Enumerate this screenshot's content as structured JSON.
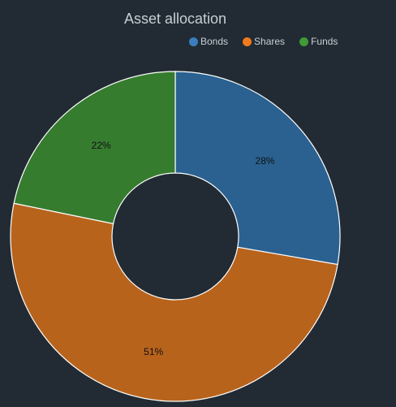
{
  "chart_data": {
    "type": "pie",
    "title": "Asset allocation",
    "categories": [
      "Bonds",
      "Shares",
      "Funds"
    ],
    "values": [
      28,
      51,
      22
    ],
    "value_labels": [
      "28%",
      "51%",
      "22%"
    ],
    "colors": [
      "#2a6190",
      "#b8631c",
      "#367c2f"
    ],
    "legend_colors": [
      "#3a7dbd",
      "#f07a1c",
      "#3f9a37"
    ],
    "donut": true,
    "legend_position": "top-right"
  }
}
